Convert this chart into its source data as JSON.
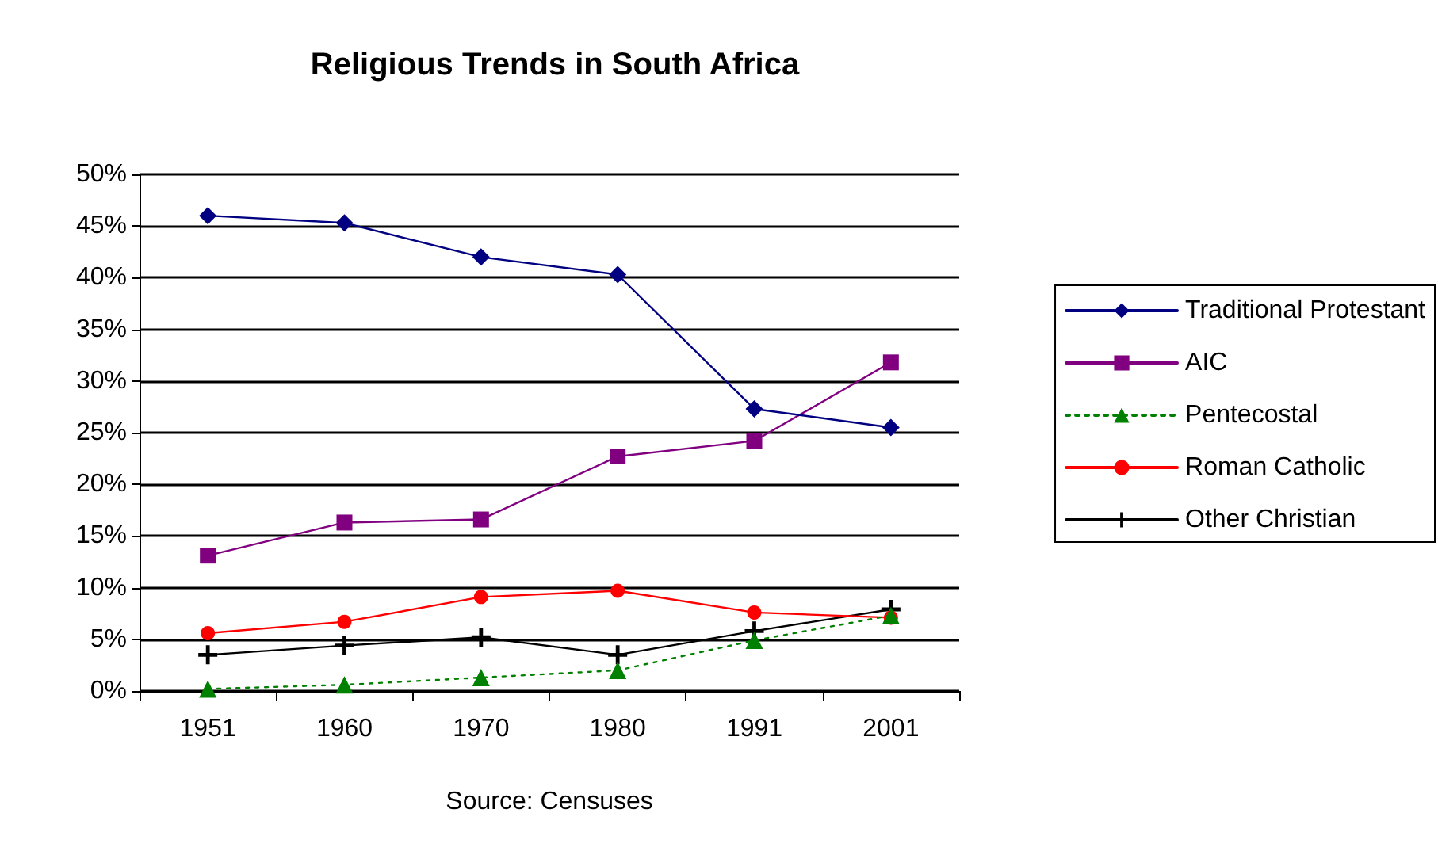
{
  "chart_data": {
    "type": "line",
    "title": "Religious Trends in South Africa",
    "xlabel": "Source: Censuses",
    "categories": [
      "1951",
      "1960",
      "1970",
      "1980",
      "1991",
      "2001"
    ],
    "series": [
      {
        "name": "Traditional Protestant",
        "color": "#000080",
        "marker": "diamond",
        "line_style": "solid",
        "values": [
          46,
          45.3,
          42,
          40.3,
          27.3,
          25.5
        ]
      },
      {
        "name": "AIC",
        "color": "#800080",
        "marker": "square",
        "line_style": "solid",
        "values": [
          13.1,
          16.3,
          16.6,
          22.7,
          24.2,
          31.8
        ]
      },
      {
        "name": "Pentecostal",
        "color": "#008000",
        "marker": "triangle",
        "line_style": "dotted",
        "values": [
          0.2,
          0.6,
          1.3,
          2,
          4.9,
          7.3
        ]
      },
      {
        "name": "Roman Catholic",
        "color": "#ff0000",
        "marker": "circle",
        "line_style": "solid",
        "values": [
          5.6,
          6.7,
          9.1,
          9.7,
          7.6,
          7.1
        ]
      },
      {
        "name": "Other Christian",
        "color": "#000000",
        "marker": "cross",
        "line_style": "solid",
        "values": [
          3.5,
          4.4,
          5.2,
          3.5,
          5.8,
          7.9
        ]
      }
    ],
    "ylim": [
      0,
      50
    ],
    "yticks": [
      {
        "value": 0,
        "label": "0%"
      },
      {
        "value": 5,
        "label": "5%"
      },
      {
        "value": 10,
        "label": "10%"
      },
      {
        "value": 15,
        "label": "15%"
      },
      {
        "value": 20,
        "label": "20%"
      },
      {
        "value": 25,
        "label": "25%"
      },
      {
        "value": 30,
        "label": "30%"
      },
      {
        "value": 35,
        "label": "35%"
      },
      {
        "value": 40,
        "label": "40%"
      },
      {
        "value": 45,
        "label": "45%"
      },
      {
        "value": 50,
        "label": "50%"
      }
    ],
    "grid": "y",
    "legend": "right"
  }
}
